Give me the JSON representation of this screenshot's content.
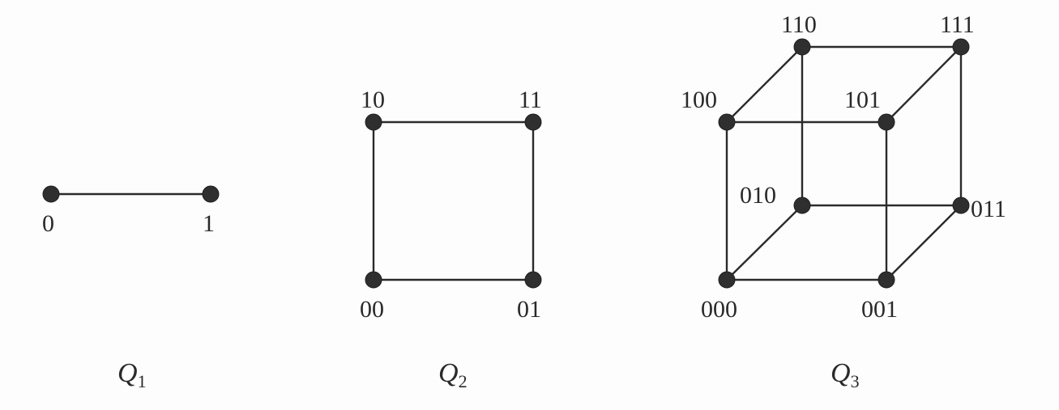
{
  "graphs": {
    "q1": {
      "name": "Q",
      "subscript": "1",
      "vertices": [
        "0",
        "1"
      ]
    },
    "q2": {
      "name": "Q",
      "subscript": "2",
      "vertices": [
        "10",
        "11",
        "00",
        "01"
      ]
    },
    "q3": {
      "name": "Q",
      "subscript": "3",
      "vertices": [
        "110",
        "111",
        "100",
        "101",
        "010",
        "011",
        "000",
        "001"
      ]
    }
  },
  "colors": {
    "edge": "#2b2b2b",
    "node": "#2f2f2f",
    "text": "#2a2a2a"
  }
}
